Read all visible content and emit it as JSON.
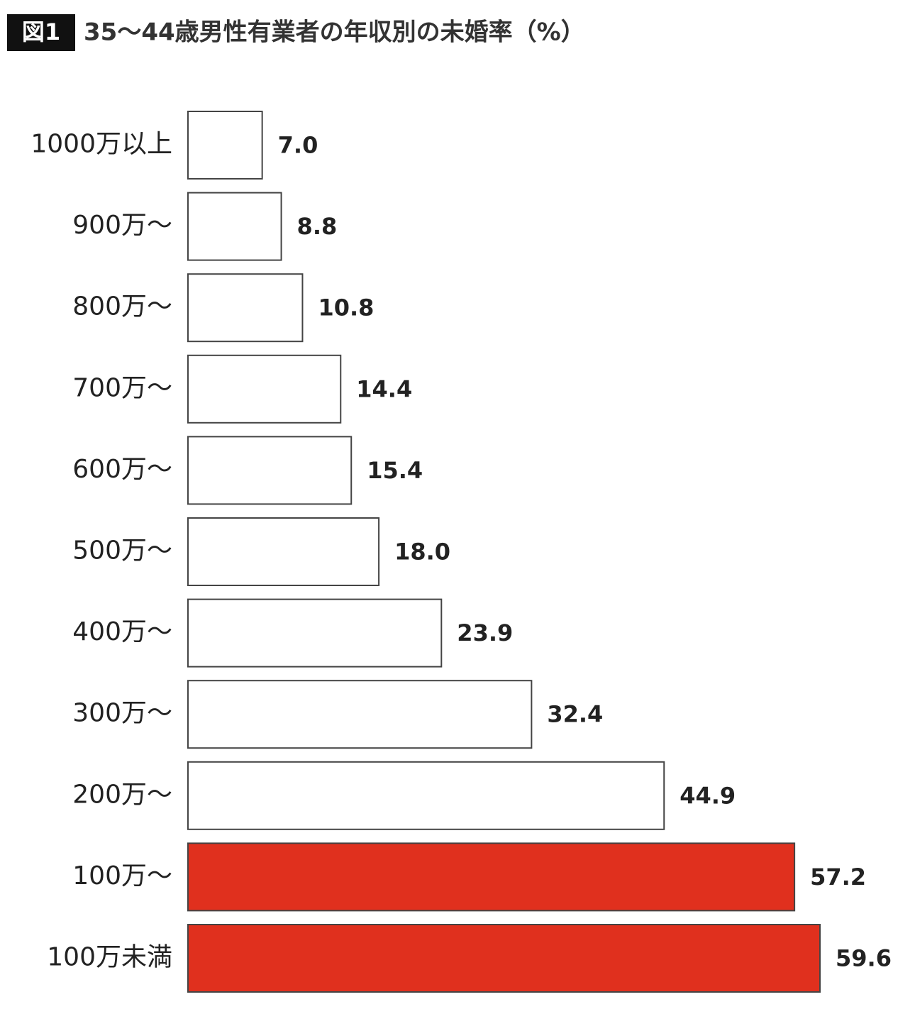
{
  "chart_data": {
    "type": "bar",
    "orientation": "horizontal",
    "figure_label": "図1",
    "title": "35〜44歳男性有業者の年収別の未婚率（%）",
    "categories": [
      "1000万以上",
      "900万〜",
      "800万〜",
      "700万〜",
      "600万〜",
      "500万〜",
      "400万〜",
      "300万〜",
      "200万〜",
      "100万〜",
      "100万未満"
    ],
    "values": [
      7.0,
      8.8,
      10.8,
      14.4,
      15.4,
      18.0,
      23.9,
      32.4,
      44.9,
      57.2,
      59.6
    ],
    "value_labels": [
      "7.0",
      "8.8",
      "10.8",
      "14.4",
      "15.4",
      "18.0",
      "23.9",
      "32.4",
      "44.9",
      "57.2",
      "59.6"
    ],
    "colors": [
      "#ffffff",
      "#ffffff",
      "#ffffff",
      "#ffffff",
      "#ffffff",
      "#ffffff",
      "#ffffff",
      "#ffffff",
      "#ffffff",
      "#e0301e",
      "#e0301e"
    ]
  }
}
